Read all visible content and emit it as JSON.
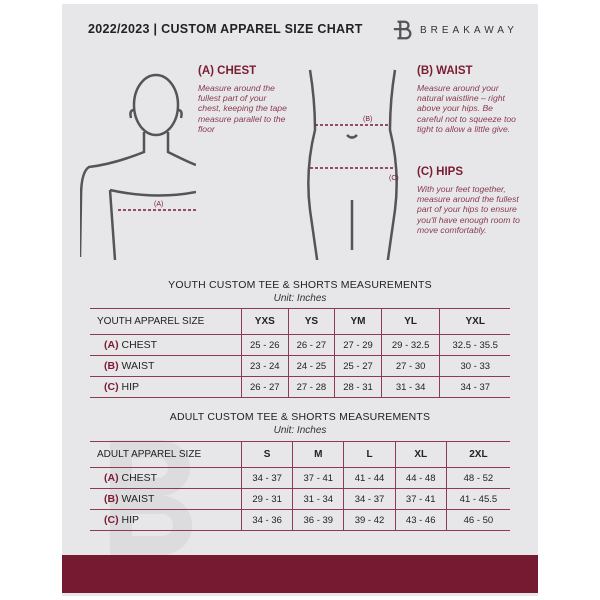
{
  "header": {
    "title": "2022/2023  |  CUSTOM APPAREL SIZE CHART",
    "brand": "BREAKAWAY"
  },
  "colors": {
    "accent": "#761a31",
    "background": "#e7e7e9"
  },
  "measures": {
    "chest": {
      "title": "(A) CHEST",
      "desc": "Measure around the fullest part of your chest, keeping the tape measure parallel to the floor",
      "marker": "(A)"
    },
    "waist": {
      "title": "(B) WAIST",
      "desc": "Measure around your natural waistline – right above your hips. Be careful not to squeeze too tight to allow a little give.",
      "marker": "(B)"
    },
    "hips": {
      "title": "(C) HIPS",
      "desc": "With your feet together, measure around the fullest part of your hips to ensure you'll have enough room to move comfortably.",
      "marker": "(C)"
    }
  },
  "youth": {
    "title": "YOUTH CUSTOM TEE & SHORTS MEASUREMENTS",
    "unit": "Unit: Inches",
    "header": [
      "YOUTH APPAREL SIZE",
      "YXS",
      "YS",
      "YM",
      "YL",
      "YXL"
    ],
    "rows": [
      {
        "code": "(A)",
        "name": "CHEST",
        "values": [
          "25 - 26",
          "26 - 27",
          "27 - 29",
          "29 - 32.5",
          "32.5 - 35.5"
        ]
      },
      {
        "code": "(B)",
        "name": "WAIST",
        "values": [
          "23 - 24",
          "24 - 25",
          "25 - 27",
          "27 - 30",
          "30 - 33"
        ]
      },
      {
        "code": "(C)",
        "name": "HIP",
        "values": [
          "26 - 27",
          "27 - 28",
          "28 - 31",
          "31 - 34",
          "34 - 37"
        ]
      }
    ]
  },
  "adult": {
    "title": "ADULT CUSTOM TEE & SHORTS MEASUREMENTS",
    "unit": "Unit: Inches",
    "header": [
      "ADULT APPAREL SIZE",
      "S",
      "M",
      "L",
      "XL",
      "2XL"
    ],
    "rows": [
      {
        "code": "(A)",
        "name": "CHEST",
        "values": [
          "34 - 37",
          "37 - 41",
          "41 - 44",
          "44 - 48",
          "48 - 52"
        ]
      },
      {
        "code": "(B)",
        "name": "WAIST",
        "values": [
          "29 - 31",
          "31 - 34",
          "34 - 37",
          "37 - 41",
          "41 - 45.5"
        ]
      },
      {
        "code": "(C)",
        "name": "HIP",
        "values": [
          "34 - 36",
          "36 - 39",
          "39 - 42",
          "43 - 46",
          "46 - 50"
        ]
      }
    ]
  }
}
